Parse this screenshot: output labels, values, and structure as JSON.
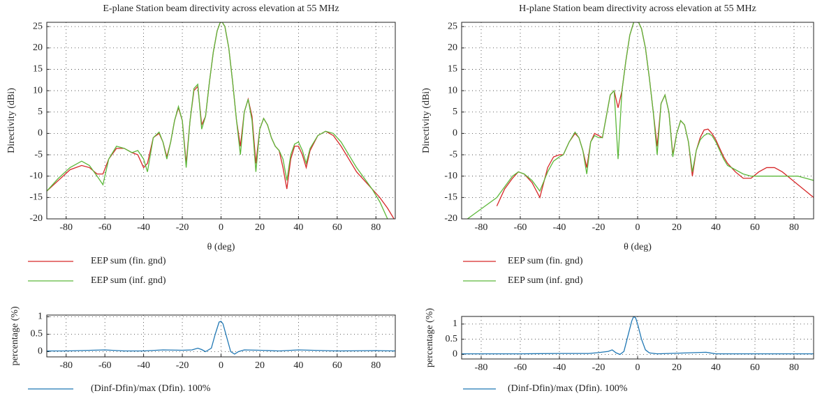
{
  "chart_data": [
    {
      "type": "line",
      "title": "E-plane Station beam directivity across elevation at 55 MHz",
      "xlabel": "θ (deg)",
      "ylabel": "Directivity (dBi)",
      "x": [
        -90,
        -84,
        -78,
        -72,
        -68,
        -64,
        -61,
        -58,
        -54,
        -50,
        -46,
        -43,
        -40,
        -38,
        -35,
        -32,
        -30,
        -28,
        -26,
        -24,
        -22,
        -20,
        -18,
        -16,
        -14,
        -12,
        -10,
        -8,
        -6,
        -4,
        -2,
        0,
        2,
        4,
        6,
        8,
        10,
        12,
        14,
        16,
        18,
        20,
        22,
        24,
        26,
        28,
        30,
        32,
        34,
        36,
        38,
        40,
        42,
        44,
        46,
        50,
        54,
        58,
        62,
        66,
        70,
        74,
        78,
        82,
        86,
        90
      ],
      "series": [
        {
          "name": "EEP sum (fin. gnd)",
          "color": "#d62728",
          "values": [
            -13.5,
            -11,
            -8.5,
            -7.5,
            -8,
            -9.5,
            -9.5,
            -6,
            -3.5,
            -3.5,
            -4.5,
            -5,
            -8,
            -7,
            -1,
            0,
            -2,
            -5.5,
            -2,
            3,
            6,
            3,
            -7,
            3,
            10,
            11,
            2,
            4,
            12,
            19,
            24,
            26.5,
            25,
            20,
            12,
            3,
            -3,
            5,
            8,
            4,
            -7,
            1,
            3.5,
            2,
            -1,
            -3,
            -4,
            -8,
            -13,
            -6,
            -3,
            -3,
            -5,
            -8,
            -4,
            -0.5,
            0.5,
            -0.5,
            -3,
            -6,
            -9,
            -11,
            -13,
            -15,
            -17.5,
            -20.5
          ]
        },
        {
          "name": "EEP sum (inf. gnd)",
          "color": "#5cb83a",
          "values": [
            -13.5,
            -10.5,
            -8,
            -6.5,
            -7.5,
            -10,
            -12,
            -6,
            -3,
            -3.5,
            -4.5,
            -4,
            -6,
            -9,
            -1,
            0.3,
            -2,
            -6,
            -2,
            3,
            6.3,
            3,
            -8,
            3,
            10.5,
            11.5,
            1,
            4,
            12,
            19,
            24,
            26.5,
            25,
            20,
            12,
            3,
            -5,
            5,
            8,
            3,
            -9,
            1,
            3.5,
            2,
            -1,
            -3,
            -4,
            -6,
            -11,
            -5,
            -2.5,
            -2,
            -4,
            -7,
            -3.5,
            -0.5,
            0.5,
            0,
            -2,
            -5,
            -8,
            -10.5,
            -13,
            -16,
            -20,
            -23
          ]
        }
      ],
      "xlim": [
        -90,
        90
      ],
      "ylim": [
        -20,
        26
      ],
      "xticks": [
        -80,
        -60,
        -40,
        -20,
        0,
        20,
        40,
        60,
        80
      ],
      "yticks": [
        -20,
        -15,
        -10,
        -5,
        0,
        5,
        10,
        15,
        20,
        25
      ],
      "grid": true
    },
    {
      "type": "line",
      "title": "H-plane Station beam directivity across elevation at 55 MHz",
      "xlabel": "θ (deg)",
      "ylabel": "Directivity (dBi)",
      "x": [
        -90,
        -84,
        -78,
        -72,
        -68,
        -64,
        -61,
        -58,
        -54,
        -50,
        -46,
        -43,
        -40,
        -38,
        -35,
        -32,
        -30,
        -28,
        -26,
        -24,
        -22,
        -20,
        -18,
        -16,
        -14,
        -12,
        -10,
        -8,
        -6,
        -4,
        -2,
        0,
        2,
        4,
        6,
        8,
        10,
        12,
        14,
        16,
        18,
        20,
        22,
        24,
        26,
        28,
        30,
        32,
        34,
        36,
        38,
        40,
        42,
        44,
        46,
        50,
        54,
        58,
        62,
        66,
        70,
        74,
        78,
        82,
        86,
        90
      ],
      "series": [
        {
          "name": "EEP sum (fin. gnd)",
          "color": "#d62728",
          "values": [
            null,
            null,
            null,
            -17,
            -13,
            -10.5,
            -9,
            -9.5,
            -11.5,
            -15,
            -8,
            -5.5,
            -5,
            -5,
            -2,
            0,
            -1,
            -4,
            -8,
            -2,
            0,
            -0.5,
            -1,
            4,
            9,
            10,
            6,
            10,
            17,
            23,
            26,
            26.5,
            24.5,
            20,
            13,
            5,
            -3,
            7,
            9,
            5,
            -5,
            0,
            3,
            2,
            -2,
            -10,
            -4,
            -1,
            0.8,
            1,
            0,
            -1.5,
            -3.5,
            -5.5,
            -7,
            -9,
            -10.5,
            -10.5,
            -9,
            -8,
            -8,
            -9,
            -10.5,
            -12,
            -13.5,
            -15
          ]
        },
        {
          "name": "EEP sum (inf. gnd)",
          "color": "#5cb83a",
          "values": [
            -21,
            -19,
            -17,
            -15,
            -12.5,
            -10,
            -9,
            -9.5,
            -11,
            -13.5,
            -9,
            -6.5,
            -5.5,
            -5,
            -2,
            0.3,
            -1,
            -4,
            -9.5,
            -2,
            -0.5,
            -1,
            -1,
            4,
            9,
            10,
            -6,
            10,
            17,
            23,
            26,
            26.5,
            24.5,
            20,
            13,
            5,
            -5,
            7,
            9,
            5,
            -5.5,
            0,
            3,
            2,
            -2,
            -9,
            -4,
            -1.5,
            -0.5,
            0,
            -0.5,
            -2,
            -4,
            -6,
            -7.5,
            -8.5,
            -9.5,
            -10,
            -10,
            -10,
            -10,
            -10,
            -10,
            -10,
            -10.5,
            -11
          ]
        }
      ],
      "xlim": [
        -90,
        90
      ],
      "ylim": [
        -20,
        26
      ],
      "xticks": [
        -80,
        -60,
        -40,
        -20,
        0,
        20,
        40,
        60,
        80
      ],
      "yticks": [
        -20,
        -15,
        -10,
        -5,
        0,
        5,
        10,
        15,
        20,
        25
      ],
      "grid": true
    },
    {
      "type": "line",
      "ylabel": "percentage (%)",
      "x": [
        -90,
        -80,
        -60,
        -50,
        -40,
        -30,
        -20,
        -15,
        -12,
        -10,
        -8,
        -5,
        -3,
        -1,
        0,
        1,
        3,
        5,
        7,
        9,
        12,
        20,
        30,
        40,
        60,
        80,
        90
      ],
      "series": [
        {
          "name": "(Dinf-Dfin)/max (Dfin). 100%",
          "color": "#1f77b4",
          "values": [
            0.02,
            0.02,
            0.05,
            0.02,
            0.02,
            0.05,
            0.04,
            0.05,
            0.1,
            0.06,
            0.0,
            0.1,
            0.5,
            0.85,
            0.87,
            0.8,
            0.4,
            0.0,
            -0.07,
            0.0,
            0.05,
            0.04,
            0.02,
            0.05,
            0.02,
            0.03,
            0.02
          ]
        }
      ],
      "xlim": [
        -90,
        90
      ],
      "ylim": [
        -0.15,
        1.05
      ],
      "xticks": [
        -80,
        -60,
        -40,
        -20,
        0,
        20,
        40,
        60,
        80
      ],
      "yticks": [
        0,
        0.5,
        1
      ],
      "grid": true
    },
    {
      "type": "line",
      "ylabel": "percentage (%)",
      "x": [
        -90,
        -80,
        -60,
        -40,
        -25,
        -20,
        -15,
        -13,
        -11,
        -9,
        -7,
        -5,
        -3,
        -2,
        -1,
        0,
        2,
        4,
        6,
        10,
        20,
        35,
        40,
        60,
        80,
        90
      ],
      "series": [
        {
          "name": "(Dinf-Dfin)/max (Dfin). 100%",
          "color": "#1f77b4",
          "values": [
            0.02,
            0.02,
            0.02,
            0.03,
            0.03,
            0.06,
            0.1,
            0.15,
            0.05,
            0.0,
            0.1,
            0.6,
            1.1,
            1.25,
            1.2,
            1.0,
            0.5,
            0.15,
            0.05,
            0.02,
            0.04,
            0.07,
            0.02,
            0.02,
            0.02,
            0.02
          ]
        }
      ],
      "xlim": [
        -90,
        90
      ],
      "ylim": [
        -0.15,
        1.25
      ],
      "xticks": [
        -80,
        -60,
        -40,
        -20,
        0,
        20,
        40,
        60,
        80
      ],
      "yticks": [
        0,
        0.5,
        1
      ],
      "grid": true
    }
  ]
}
